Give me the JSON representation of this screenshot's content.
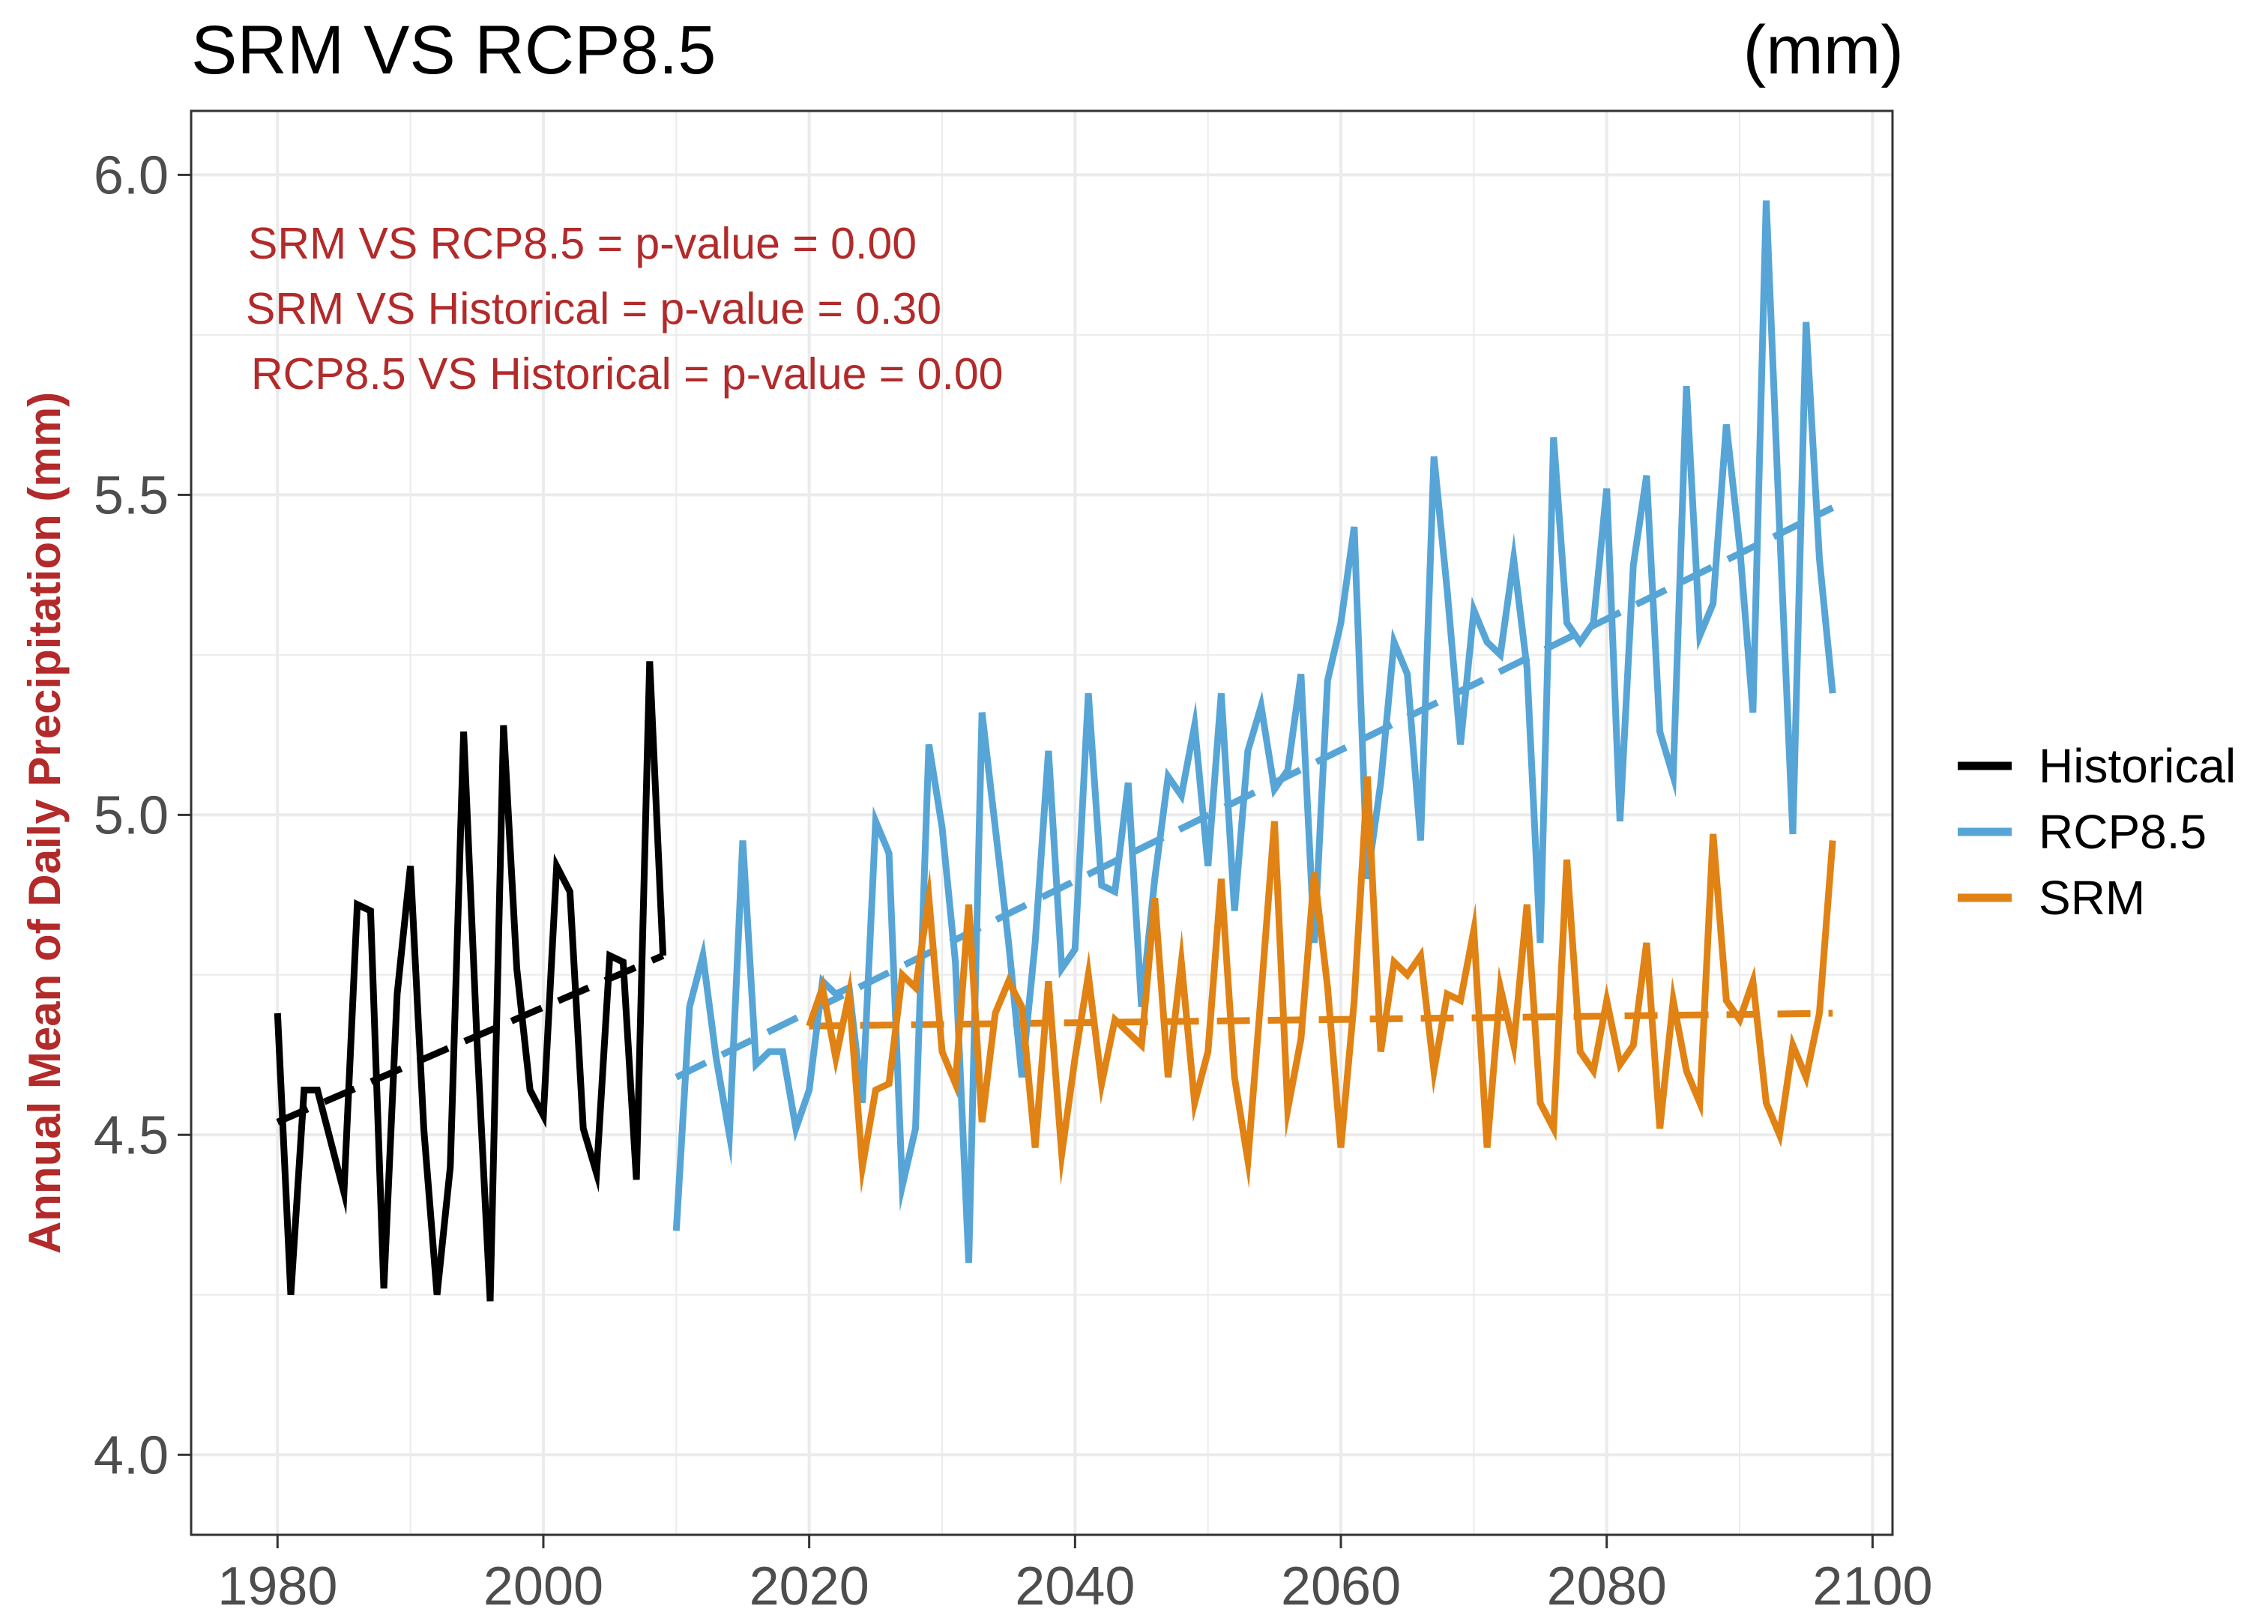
{
  "chart_data": {
    "type": "line",
    "title": "SRM VS RCP8.5",
    "unit_label": "(mm)",
    "xlabel": "",
    "ylabel": "Annual Mean of Daily Precipitation (mm)",
    "xlim": [
      1973.5,
      2101.5
    ],
    "ylim": [
      3.875,
      6.1
    ],
    "xticks": [
      1980,
      2000,
      2020,
      2040,
      2060,
      2080,
      2100
    ],
    "yticks": [
      4.0,
      4.5,
      5.0,
      5.5,
      6.0
    ],
    "grid": true,
    "legend_position": "right",
    "annotations": [
      "SRM VS RCP8.5 = p-value = 0.00",
      "SRM VS Historical = p-value = 0.30",
      "RCP8.5 VS Historical = p-value = 0.00"
    ],
    "colors": {
      "historical": "#000000",
      "rcp85": "#56a5d6",
      "srm": "#e08214",
      "annotation": "#b22a2a",
      "ylabel": "#b22a2a",
      "grid": "#ebebeb",
      "axis_text": "#4d4d4d"
    },
    "series": [
      {
        "name": "Historical",
        "color": "#000000",
        "x": [
          1980,
          1981,
          1982,
          1983,
          1984,
          1985,
          1986,
          1987,
          1988,
          1989,
          1990,
          1991,
          1992,
          1993,
          1994,
          1995,
          1996,
          1997,
          1998,
          1999,
          2000,
          2001,
          2002,
          2003,
          2004,
          2005,
          2006,
          2007,
          2008,
          2009
        ],
        "values": [
          4.69,
          4.25,
          4.57,
          4.57,
          4.49,
          4.41,
          4.86,
          4.85,
          4.26,
          4.72,
          4.92,
          4.51,
          4.25,
          4.45,
          5.13,
          4.65,
          4.24,
          5.14,
          4.76,
          4.57,
          4.53,
          4.92,
          4.88,
          4.51,
          4.44,
          4.78,
          4.77,
          4.43,
          5.24,
          4.78
        ],
        "trend": {
          "x": [
            1980,
            2009
          ],
          "y": [
            4.52,
            4.78
          ]
        }
      },
      {
        "name": "RCP8.5",
        "color": "#56a5d6",
        "x": [
          2010,
          2011,
          2012,
          2013,
          2014,
          2015,
          2016,
          2017,
          2018,
          2019,
          2020,
          2021,
          2022,
          2023,
          2024,
          2025,
          2026,
          2027,
          2028,
          2029,
          2030,
          2031,
          2032,
          2033,
          2034,
          2035,
          2036,
          2037,
          2038,
          2039,
          2040,
          2041,
          2042,
          2043,
          2044,
          2045,
          2046,
          2047,
          2048,
          2049,
          2050,
          2051,
          2052,
          2053,
          2054,
          2055,
          2056,
          2057,
          2058,
          2059,
          2060,
          2061,
          2062,
          2063,
          2064,
          2065,
          2066,
          2067,
          2068,
          2069,
          2070,
          2071,
          2072,
          2073,
          2074,
          2075,
          2076,
          2077,
          2078,
          2079,
          2080,
          2081,
          2082,
          2083,
          2084,
          2085,
          2086,
          2087,
          2088,
          2089,
          2090,
          2091,
          2092,
          2093,
          2094,
          2095,
          2096,
          2097
        ],
        "values": [
          4.35,
          4.7,
          4.78,
          4.62,
          4.5,
          4.96,
          4.61,
          4.63,
          4.63,
          4.51,
          4.57,
          4.74,
          4.72,
          4.73,
          4.55,
          4.99,
          4.94,
          4.42,
          4.51,
          5.11,
          4.98,
          4.77,
          4.3,
          5.16,
          4.98,
          4.8,
          4.59,
          4.8,
          5.1,
          4.76,
          4.79,
          5.19,
          4.89,
          4.88,
          5.05,
          4.7,
          4.9,
          5.06,
          5.03,
          5.14,
          4.92,
          5.19,
          4.85,
          5.1,
          5.17,
          5.04,
          5.07,
          5.22,
          4.8,
          5.21,
          5.3,
          5.45,
          4.9,
          5.05,
          5.27,
          5.22,
          4.96,
          5.56,
          5.35,
          5.11,
          5.32,
          5.27,
          5.25,
          5.4,
          5.23,
          4.8,
          5.59,
          5.3,
          5.27,
          5.3,
          5.51,
          4.99,
          5.39,
          5.53,
          5.13,
          5.06,
          5.67,
          5.28,
          5.33,
          5.61,
          5.42,
          5.16,
          5.96,
          5.45,
          4.97,
          5.77,
          5.4,
          5.19
        ],
        "trend": {
          "x": [
            2010,
            2097
          ],
          "y": [
            4.59,
            5.48
          ]
        }
      },
      {
        "name": "SRM",
        "color": "#e08214",
        "x": [
          2020,
          2021,
          2022,
          2023,
          2024,
          2025,
          2026,
          2027,
          2028,
          2029,
          2030,
          2031,
          2032,
          2033,
          2034,
          2035,
          2036,
          2037,
          2038,
          2039,
          2040,
          2041,
          2042,
          2043,
          2044,
          2045,
          2046,
          2047,
          2048,
          2049,
          2050,
          2051,
          2052,
          2053,
          2054,
          2055,
          2056,
          2057,
          2058,
          2059,
          2060,
          2061,
          2062,
          2063,
          2064,
          2065,
          2066,
          2067,
          2068,
          2069,
          2070,
          2071,
          2072,
          2073,
          2074,
          2075,
          2076,
          2077,
          2078,
          2079,
          2080,
          2081,
          2082,
          2083,
          2084,
          2085,
          2086,
          2087,
          2088,
          2089,
          2090,
          2091,
          2092,
          2093,
          2094,
          2095,
          2096,
          2097
        ],
        "values": [
          4.67,
          4.73,
          4.62,
          4.72,
          4.45,
          4.57,
          4.58,
          4.75,
          4.73,
          4.87,
          4.63,
          4.58,
          4.86,
          4.52,
          4.69,
          4.74,
          4.7,
          4.48,
          4.74,
          4.47,
          4.62,
          4.75,
          4.58,
          4.68,
          4.66,
          4.64,
          4.87,
          4.59,
          4.77,
          4.55,
          4.63,
          4.9,
          4.59,
          4.46,
          4.72,
          4.99,
          4.54,
          4.65,
          4.91,
          4.73,
          4.48,
          4.71,
          5.06,
          4.63,
          4.77,
          4.75,
          4.78,
          4.6,
          4.72,
          4.71,
          4.82,
          4.48,
          4.73,
          4.64,
          4.86,
          4.55,
          4.51,
          4.93,
          4.63,
          4.6,
          4.71,
          4.61,
          4.64,
          4.8,
          4.51,
          4.71,
          4.6,
          4.55,
          4.97,
          4.71,
          4.68,
          4.74,
          4.55,
          4.5,
          4.64,
          4.59,
          4.69,
          4.96
        ],
        "trend": {
          "x": [
            2020,
            2097
          ],
          "y": [
            4.67,
            4.69
          ]
        }
      }
    ]
  }
}
